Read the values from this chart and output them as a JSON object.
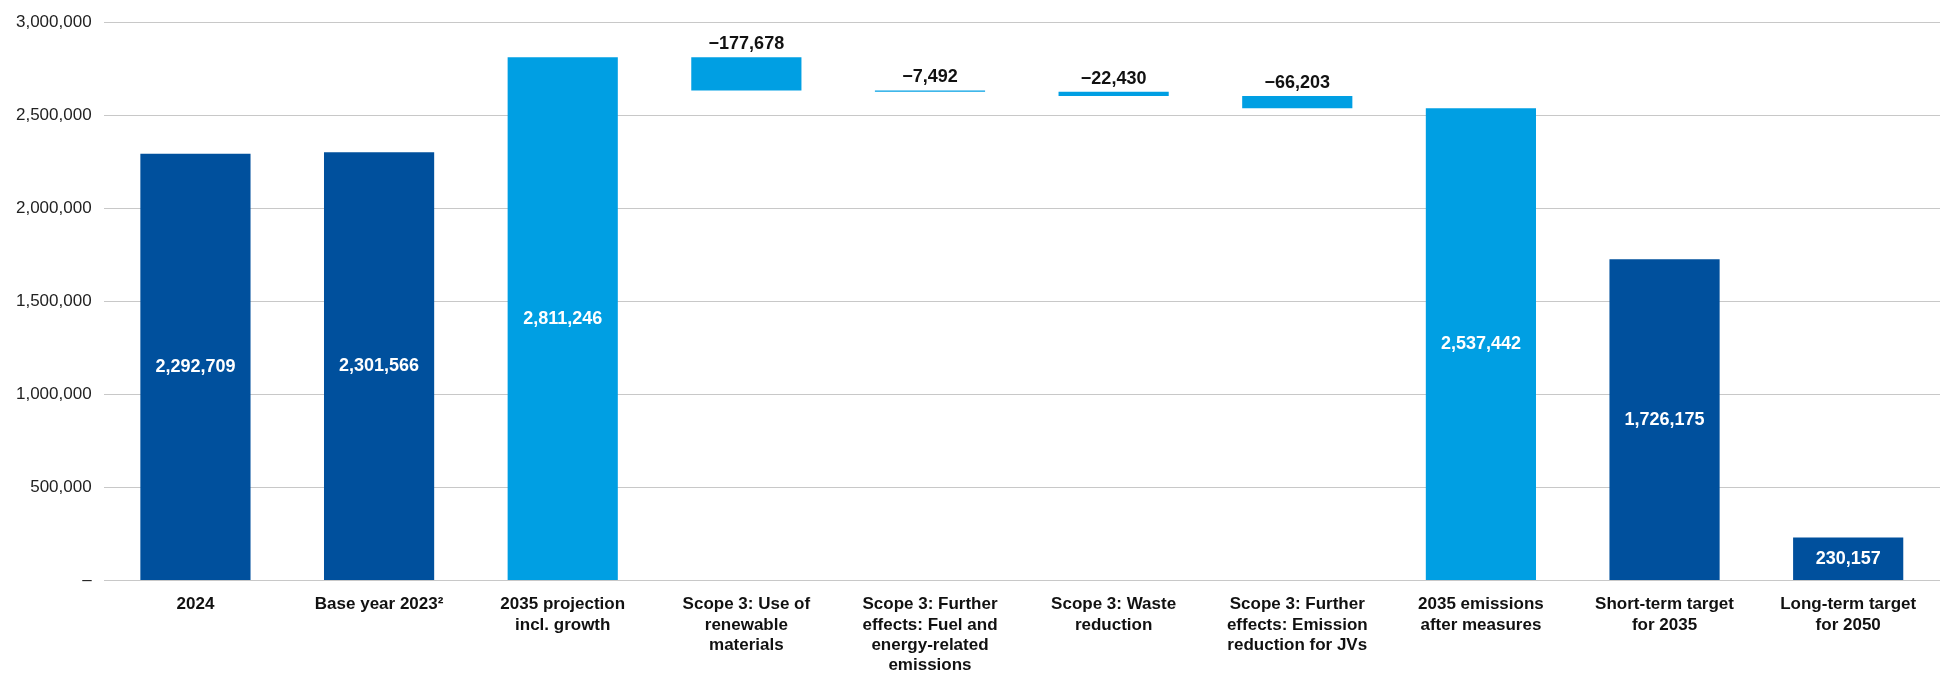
{
  "chart_data": {
    "type": "bar",
    "categories": [
      "2024",
      "Base year 2023²",
      "2035 projection incl. growth",
      "Scope 3: Use of renewable materials",
      "Scope 3: Further effects: Fuel and energy-related emissions",
      "Scope 3: Waste reduction",
      "Scope 3: Further effects: Emission reduction for JVs",
      "2035 emissions after measures",
      "Short-term target for 2035",
      "Long-term target for 2050"
    ],
    "values": [
      2292709,
      2301566,
      2811246,
      -177678,
      -7492,
      -22430,
      -66203,
      2537442,
      1726175,
      230157
    ],
    "base": [
      0,
      0,
      0,
      2811246,
      2633568,
      2626076,
      2603646,
      0,
      0,
      0
    ],
    "colors": [
      "#00509d",
      "#00509d",
      "#009fe3",
      "#009fe3",
      "#009fe3",
      "#009fe3",
      "#009fe3",
      "#009fe3",
      "#00509d",
      "#00509d"
    ],
    "value_labels": [
      "2,292,709",
      "2,301,566",
      "2,811,246",
      "−177,678",
      "−7,492",
      "−22,430",
      "−66,203",
      "2,537,442",
      "1,726,175",
      "230,157"
    ],
    "ylim": [
      0,
      3000000
    ],
    "yticks": [
      {
        "value": 0,
        "label": "–"
      },
      {
        "value": 500000,
        "label": "500,000"
      },
      {
        "value": 1000000,
        "label": "1,000,000"
      },
      {
        "value": 1500000,
        "label": "1,500,000"
      },
      {
        "value": 2000000,
        "label": "2,000,000"
      },
      {
        "value": 2500000,
        "label": "2,500,000"
      },
      {
        "value": 3000000,
        "label": "3,000,000"
      }
    ],
    "grid": "y"
  }
}
